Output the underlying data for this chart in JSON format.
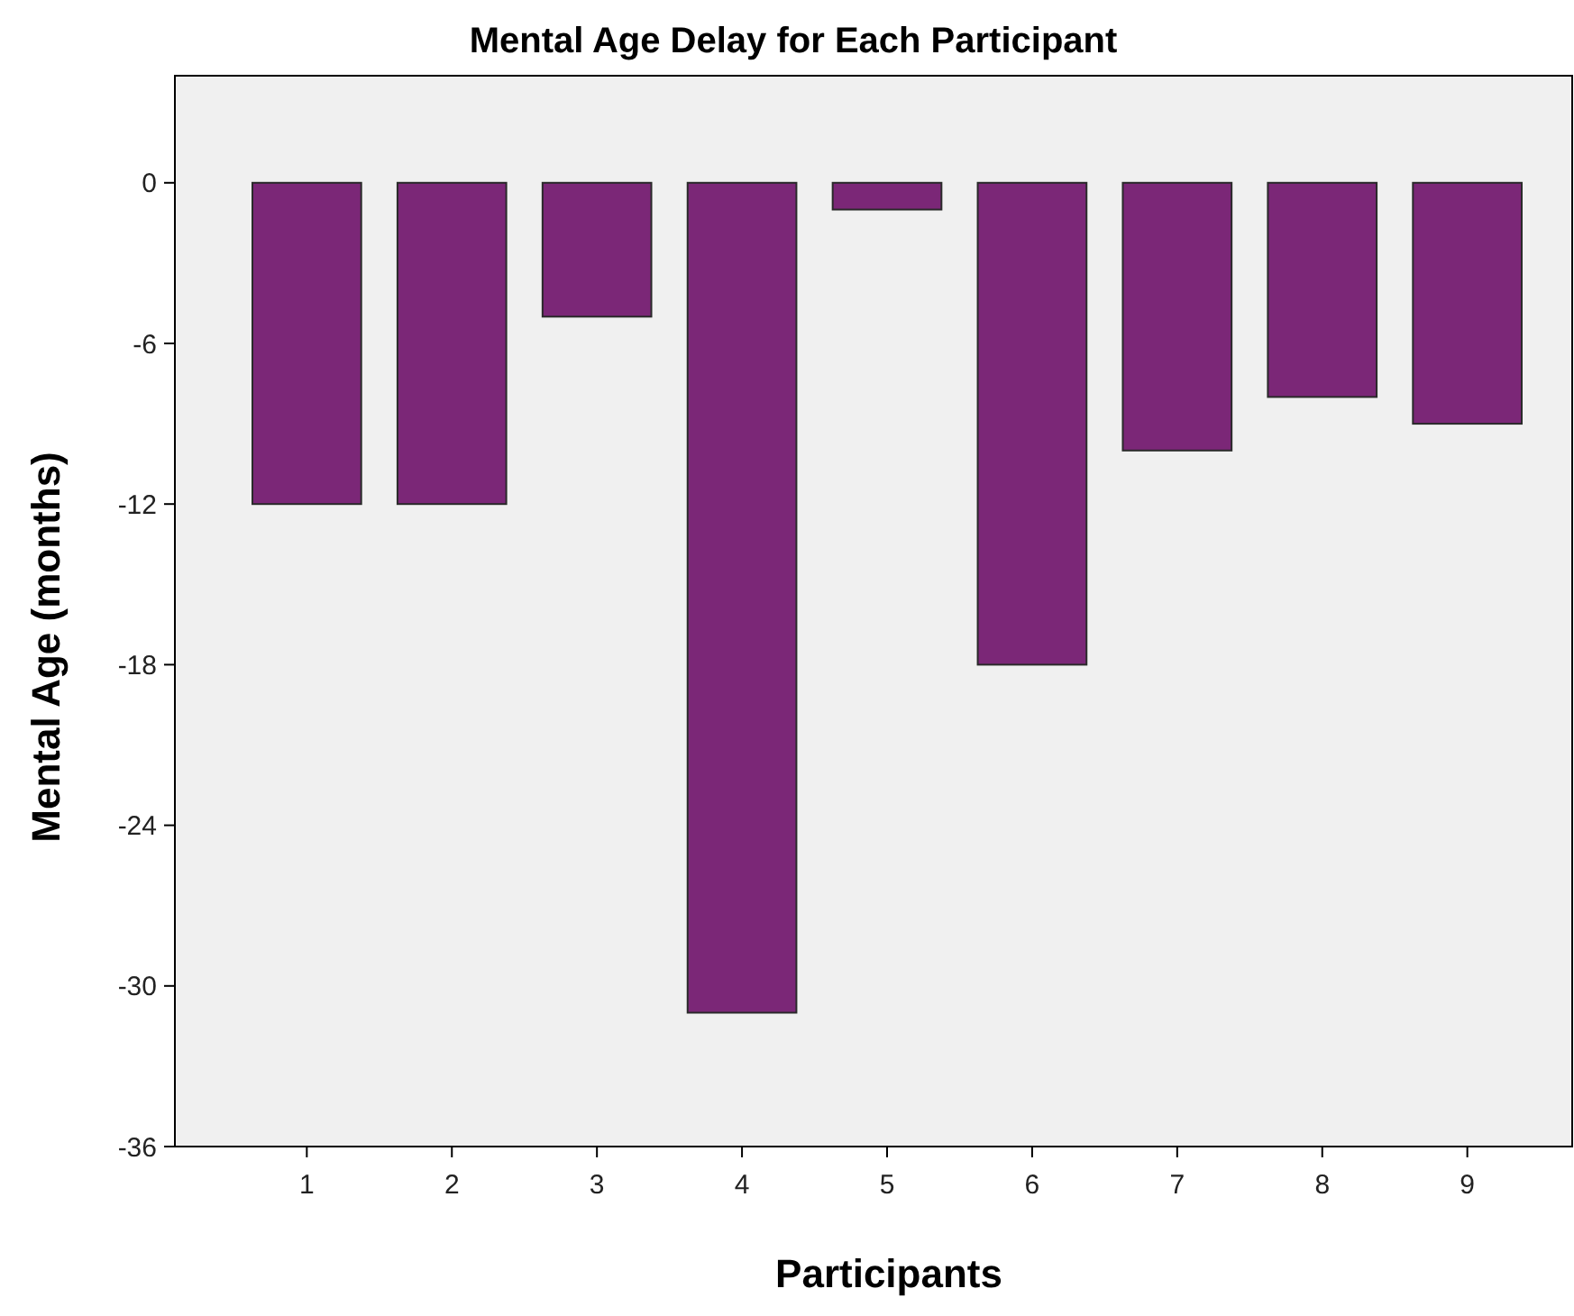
{
  "chart_data": {
    "type": "bar",
    "title": "Mental Age Delay for Each Participant",
    "xlabel": "Participants",
    "ylabel": "Mental Age (months)",
    "categories": [
      "1",
      "2",
      "3",
      "4",
      "5",
      "6",
      "7",
      "8",
      "9"
    ],
    "values": [
      -12,
      -12,
      -5,
      -31,
      -1,
      -18,
      -10,
      -8,
      -9
    ],
    "color": "#7b2777",
    "ylim": [
      -36,
      4
    ],
    "yticks": [
      -36,
      -30,
      -24,
      -18,
      -12,
      -6,
      0
    ],
    "grid": false
  }
}
